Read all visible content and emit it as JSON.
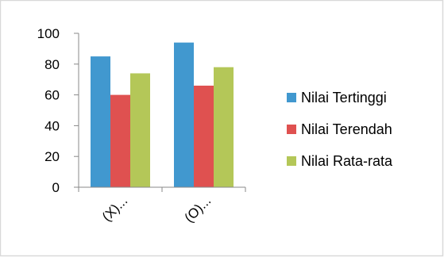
{
  "chart_data": {
    "type": "bar",
    "categories": [
      "(X)...",
      "(O)..."
    ],
    "series": [
      {
        "name": "Nilai Tertinggi",
        "color": "#4198CF",
        "values": [
          85,
          94
        ]
      },
      {
        "name": "Nilai Terendah",
        "color": "#DF5150",
        "values": [
          60,
          66
        ]
      },
      {
        "name": "Nilai Rata-rata",
        "color": "#B4C758",
        "values": [
          74,
          78
        ]
      }
    ],
    "ylim": [
      0,
      100
    ],
    "yticks": [
      "0",
      "20",
      "40",
      "60",
      "80",
      "100"
    ],
    "grid": false,
    "legend_position": "right"
  }
}
